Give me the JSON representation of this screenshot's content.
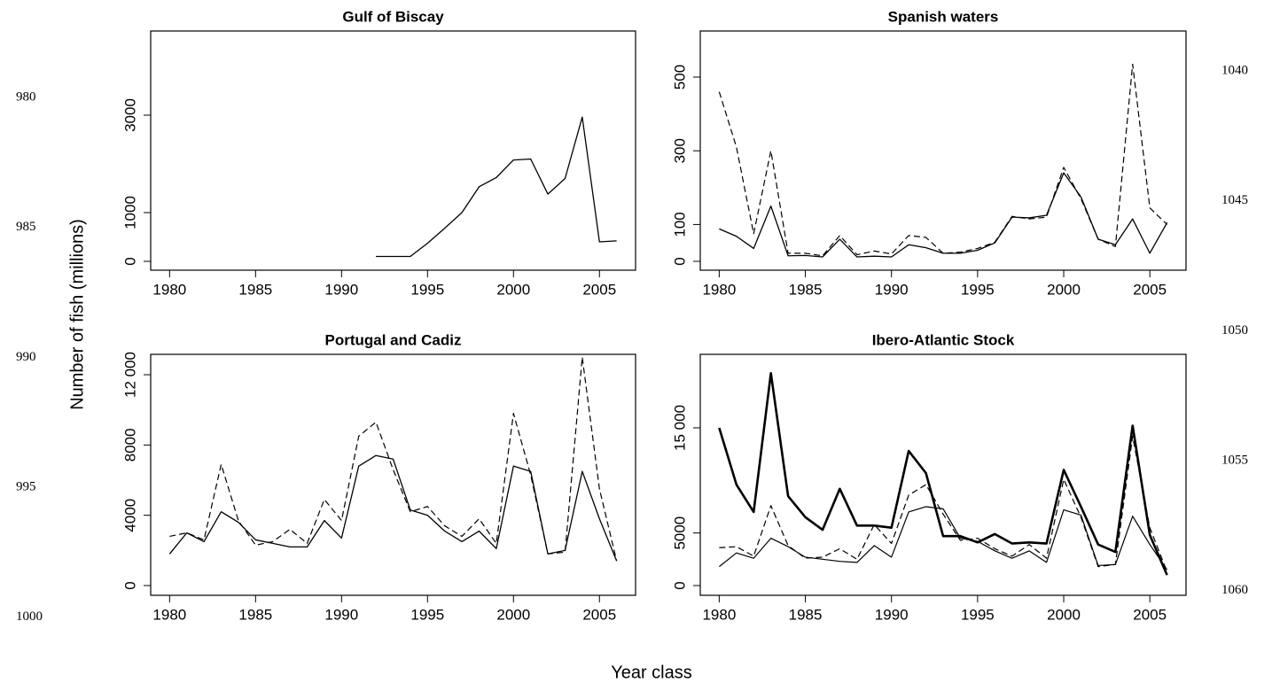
{
  "ylabel": "Number of fish (millions)",
  "xlabel": "Year class",
  "line_numbers": {
    "left": [
      "980",
      "985",
      "990",
      "995",
      "1000"
    ],
    "right": [
      "1040",
      "1045",
      "1050",
      "1055",
      "1060"
    ]
  },
  "chart_data": [
    {
      "type": "line",
      "title": "Gulf of Biscay",
      "x": [
        1980,
        1981,
        1982,
        1983,
        1984,
        1985,
        1986,
        1987,
        1988,
        1989,
        1990,
        1991,
        1992,
        1993,
        1994,
        1995,
        1996,
        1997,
        1998,
        1999,
        2000,
        2001,
        2002,
        2003,
        2004,
        2005,
        2006
      ],
      "xlim": [
        1978.9,
        2007.1
      ],
      "xticks": [
        1980,
        1985,
        1990,
        1995,
        2000,
        2005
      ],
      "ylim": [
        -182,
        4727
      ],
      "yticks": [
        0,
        1000,
        3000
      ],
      "series": [
        {
          "color": "#000000",
          "style": "solid",
          "width": 1.3,
          "values": [
            null,
            null,
            null,
            null,
            null,
            null,
            null,
            null,
            null,
            null,
            null,
            null,
            100,
            100,
            100,
            370,
            680,
            1000,
            1530,
            1720,
            2080,
            2100,
            1380,
            1700,
            2960,
            400,
            420
          ]
        }
      ]
    },
    {
      "type": "line",
      "title": "Spanish waters",
      "x": [
        1980,
        1981,
        1982,
        1983,
        1984,
        1985,
        1986,
        1987,
        1988,
        1989,
        1990,
        1991,
        1992,
        1993,
        1994,
        1995,
        1996,
        1997,
        1998,
        1999,
        2000,
        2001,
        2002,
        2003,
        2004,
        2005,
        2006
      ],
      "xlim": [
        1978.9,
        2007.1
      ],
      "xticks": [
        1980,
        1985,
        1990,
        1995,
        2000,
        2005
      ],
      "ylim": [
        -24,
        625
      ],
      "yticks": [
        0,
        100,
        300,
        500
      ],
      "series": [
        {
          "color": "#000000",
          "style": "solid",
          "width": 1.3,
          "values": [
            88,
            68,
            35,
            150,
            15,
            16,
            12,
            60,
            12,
            14,
            12,
            45,
            37,
            22,
            22,
            30,
            50,
            120,
            118,
            125,
            240,
            175,
            60,
            45,
            115,
            22,
            105
          ]
        },
        {
          "color": "#000000",
          "style": "dashed",
          "width": 1.2,
          "values": [
            460,
            310,
            75,
            300,
            22,
            22,
            15,
            70,
            18,
            28,
            20,
            70,
            65,
            22,
            25,
            35,
            52,
            122,
            115,
            120,
            255,
            170,
            60,
            40,
            535,
            145,
            100
          ]
        }
      ]
    },
    {
      "type": "line",
      "title": "Portugal and Cadiz",
      "x": [
        1980,
        1981,
        1982,
        1983,
        1984,
        1985,
        1986,
        1987,
        1988,
        1989,
        1990,
        1991,
        1992,
        1993,
        1994,
        1995,
        1996,
        1997,
        1998,
        1999,
        2000,
        2001,
        2002,
        2003,
        2004,
        2005,
        2006
      ],
      "xlim": [
        1978.9,
        2007.1
      ],
      "xticks": [
        1980,
        1985,
        1990,
        1995,
        2000,
        2005
      ],
      "ylim": [
        -555,
        13160
      ],
      "yticks": [
        0,
        4000,
        8000,
        {
          "value": 12000,
          "label": "12 000"
        }
      ],
      "series": [
        {
          "color": "#000000",
          "style": "solid",
          "width": 1.3,
          "values": [
            1800,
            3000,
            2500,
            4200,
            3600,
            2600,
            2400,
            2200,
            2200,
            3700,
            2700,
            6800,
            7400,
            7200,
            4300,
            4000,
            3100,
            2500,
            3100,
            2100,
            6800,
            6500,
            1800,
            2000,
            6500,
            3800,
            1400
          ]
        },
        {
          "color": "#000000",
          "style": "dashed",
          "width": 1.2,
          "values": [
            2800,
            3000,
            2600,
            6900,
            3700,
            2300,
            2500,
            3200,
            2400,
            4900,
            3700,
            8500,
            9300,
            6600,
            4200,
            4500,
            3400,
            2800,
            3800,
            2400,
            9800,
            6300,
            1800,
            1900,
            13000,
            5500,
            1400
          ]
        }
      ]
    },
    {
      "type": "line",
      "title": "Ibero-Atlantic Stock",
      "x": [
        1980,
        1981,
        1982,
        1983,
        1984,
        1985,
        1986,
        1987,
        1988,
        1989,
        1990,
        1991,
        1992,
        1993,
        1994,
        1995,
        1996,
        1997,
        1998,
        1999,
        2000,
        2001,
        2002,
        2003,
        2004,
        2005,
        2006
      ],
      "xlim": [
        1978.9,
        2007.1
      ],
      "xticks": [
        1980,
        1985,
        1990,
        1995,
        2000,
        2005
      ],
      "ylim": [
        -927,
        21990
      ],
      "yticks": [
        0,
        5000,
        {
          "value": 15000,
          "label": "15 000"
        }
      ],
      "series": [
        {
          "color": "#000000",
          "style": "solid",
          "width": 2.6,
          "values": [
            15000,
            9600,
            7000,
            20200,
            8500,
            6500,
            5300,
            9200,
            5700,
            5700,
            5500,
            12800,
            10700,
            4700,
            4700,
            4100,
            4900,
            4000,
            4100,
            4000,
            11000,
            7500,
            3900,
            3200,
            15200,
            4800,
            1000
          ]
        },
        {
          "color": "#000000",
          "style": "dashed",
          "width": 1.2,
          "values": [
            3600,
            3700,
            2800,
            7600,
            3800,
            2600,
            2700,
            3500,
            2500,
            5800,
            4000,
            8600,
            9600,
            6800,
            4300,
            4500,
            3500,
            2800,
            3900,
            2600,
            10100,
            6500,
            1800,
            2000,
            14200,
            5500,
            1300
          ]
        },
        {
          "color": "#000000",
          "style": "solid",
          "width": 1.2,
          "values": [
            1800,
            3100,
            2600,
            4500,
            3700,
            2700,
            2500,
            2300,
            2200,
            3800,
            2700,
            7000,
            7500,
            7300,
            4500,
            4200,
            3300,
            2600,
            3300,
            2200,
            7200,
            6700,
            1900,
            2000,
            6600,
            3900,
            1500
          ]
        }
      ]
    }
  ]
}
